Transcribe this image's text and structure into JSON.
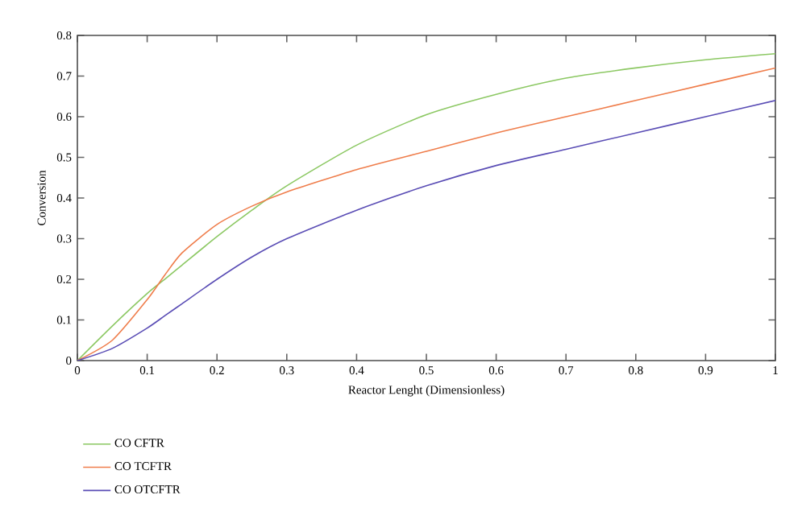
{
  "chart_data": {
    "type": "line",
    "xlabel": "Reactor Lenght (Dimensionless)",
    "ylabel": "Conversion",
    "xlim": [
      0,
      1
    ],
    "ylim": [
      0,
      0.8
    ],
    "xticks": [
      0,
      0.1,
      0.2,
      0.3,
      0.4,
      0.5,
      0.6,
      0.7,
      0.8,
      0.9,
      1
    ],
    "yticks": [
      0,
      0.1,
      0.2,
      0.3,
      0.4,
      0.5,
      0.6,
      0.7,
      0.8
    ],
    "x": [
      0,
      0.05,
      0.1,
      0.125,
      0.15,
      0.2,
      0.25,
      0.3,
      0.4,
      0.5,
      0.6,
      0.7,
      0.8,
      0.9,
      1
    ],
    "legend": "bottom",
    "grid": false,
    "series": [
      {
        "name": "CO CFTR",
        "color": "#8cc863",
        "values": [
          0,
          0.085,
          0.165,
          0.2,
          0.235,
          0.305,
          0.37,
          0.43,
          0.53,
          0.605,
          0.655,
          0.695,
          0.72,
          0.74,
          0.755
        ]
      },
      {
        "name": "CO TCFTR",
        "color": "#ef7d4b",
        "values": [
          0,
          0.05,
          0.15,
          0.21,
          0.265,
          0.335,
          0.38,
          0.415,
          0.47,
          0.515,
          0.56,
          0.6,
          0.64,
          0.68,
          0.72
        ]
      },
      {
        "name": "CO OTCFTR",
        "color": "#5a4db5",
        "values": [
          0,
          0.03,
          0.08,
          0.11,
          0.14,
          0.2,
          0.255,
          0.3,
          0.37,
          0.43,
          0.48,
          0.52,
          0.56,
          0.6,
          0.64
        ]
      }
    ]
  }
}
